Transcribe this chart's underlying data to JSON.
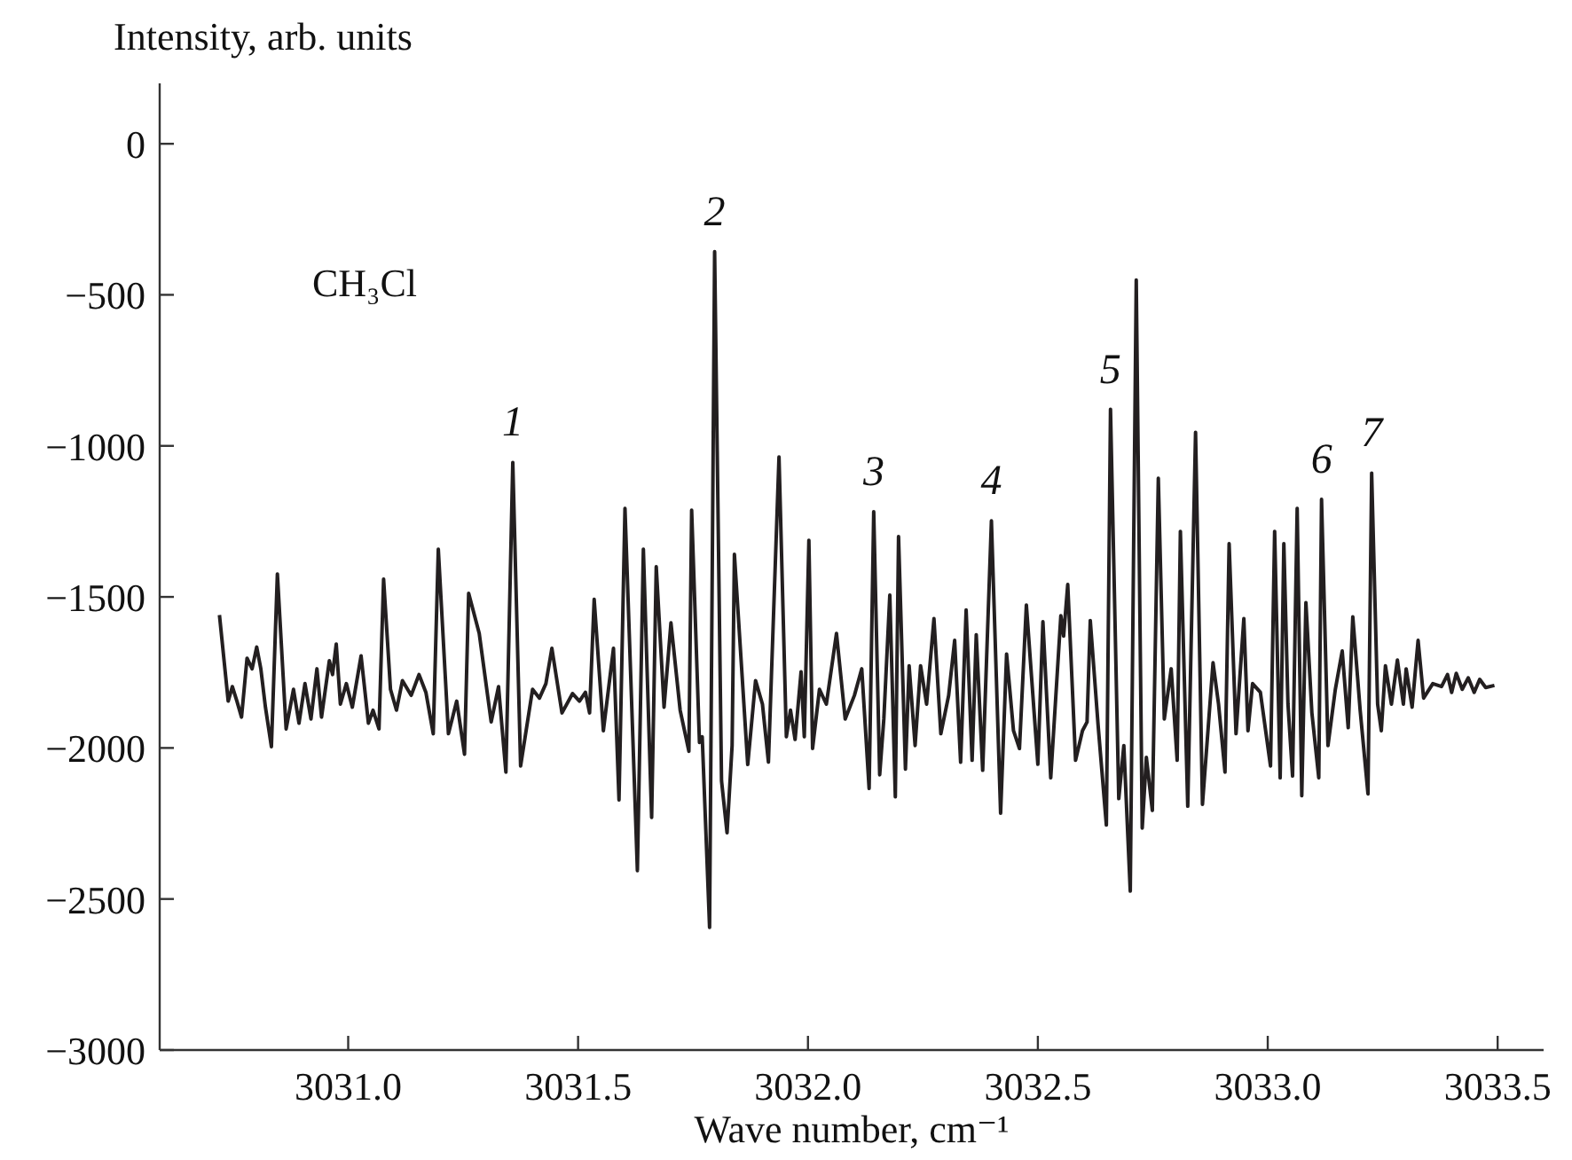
{
  "chart_data": {
    "type": "line",
    "xlabel": "Wave number, cm⁻¹",
    "ylabel": "Intensity, arb. units",
    "xlim": [
      3030.59,
      3033.6
    ],
    "ylim": [
      -3000,
      200
    ],
    "xticks": [
      {
        "value": 3031,
        "label": "3031.0"
      },
      {
        "value": 3031.5,
        "label": "3031.5"
      },
      {
        "value": 3032,
        "label": "3032.0"
      },
      {
        "value": 3032.5,
        "label": "3032.5"
      },
      {
        "value": 3033,
        "label": "3033.0"
      },
      {
        "value": 3033.5,
        "label": "3033.5"
      }
    ],
    "yticks": [
      {
        "value": -3000,
        "label": "−3000"
      },
      {
        "value": -2500,
        "label": "−2500"
      },
      {
        "value": -2000,
        "label": "−2000"
      },
      {
        "value": -1500,
        "label": "−1500"
      },
      {
        "value": -1000,
        "label": "−1000"
      },
      {
        "value": -500,
        "label": "−500"
      },
      0
    ],
    "marker": "none",
    "line_style": "solid",
    "series": [
      {
        "color": "#231f20",
        "x": [
          3030.72,
          3030.739,
          3030.748,
          3030.758,
          3030.768,
          3030.78,
          3030.791,
          3030.801,
          3030.81,
          3030.82,
          3030.833,
          3030.846,
          3030.865,
          3030.881,
          3030.893,
          3030.906,
          3030.919,
          3030.932,
          3030.942,
          3030.959,
          3030.966,
          3030.974,
          3030.983,
          3030.996,
          3031.009,
          3031.028,
          3031.044,
          3031.054,
          3031.067,
          3031.077,
          3031.092,
          3031.105,
          3031.118,
          3031.137,
          3031.154,
          3031.169,
          3031.185,
          3031.196,
          3031.218,
          3031.236,
          3031.253,
          3031.262,
          3031.285,
          3031.311,
          3031.327,
          3031.343,
          3031.358,
          3031.375,
          3031.401,
          3031.416,
          3031.43,
          3031.443,
          3031.465,
          3031.488,
          3031.503,
          3031.516,
          3031.525,
          3031.535,
          3031.555,
          3031.577,
          3031.589,
          3031.602,
          3031.629,
          3031.642,
          3031.66,
          3031.67,
          3031.687,
          3031.702,
          3031.722,
          3031.741,
          3031.747,
          3031.764,
          3031.77,
          3031.786,
          3031.797,
          3031.812,
          3031.824,
          3031.835,
          3031.84,
          3031.869,
          3031.886,
          3031.901,
          3031.914,
          3031.937,
          3031.953,
          3031.962,
          3031.972,
          3031.985,
          3031.992,
          3032.002,
          3032.01,
          3032.025,
          3032.04,
          3032.062,
          3032.081,
          3032.101,
          3032.117,
          3032.133,
          3032.143,
          3032.156,
          3032.165,
          3032.178,
          3032.19,
          3032.197,
          3032.212,
          3032.22,
          3032.233,
          3032.245,
          3032.258,
          3032.274,
          3032.289,
          3032.306,
          3032.319,
          3032.332,
          3032.344,
          3032.357,
          3032.366,
          3032.38,
          3032.399,
          3032.419,
          3032.432,
          3032.447,
          3032.46,
          3032.475,
          3032.5,
          3032.511,
          3032.528,
          3032.55,
          3032.556,
          3032.565,
          3032.582,
          3032.597,
          3032.607,
          3032.614,
          3032.631,
          3032.649,
          3032.658,
          3032.676,
          3032.687,
          3032.701,
          3032.714,
          3032.727,
          3032.736,
          3032.749,
          3032.762,
          3032.775,
          3032.79,
          3032.803,
          3032.81,
          3032.826,
          3032.843,
          3032.858,
          3032.881,
          3032.893,
          3032.907,
          3032.916,
          3032.931,
          3032.948,
          3032.957,
          3032.967,
          3032.984,
          3033.006,
          3033.015,
          3033.027,
          3033.035,
          3033.044,
          3033.054,
          3033.064,
          3033.074,
          3033.083,
          3033.096,
          3033.111,
          3033.117,
          3033.131,
          3033.147,
          3033.162,
          3033.175,
          3033.185,
          3033.201,
          3033.218,
          3033.226,
          3033.239,
          3033.247,
          3033.256,
          3033.269,
          3033.282,
          3033.295,
          3033.301,
          3033.314,
          3033.327,
          3033.339,
          3033.359,
          3033.378,
          3033.391,
          3033.4,
          3033.41,
          3033.423,
          3033.436,
          3033.449,
          3033.461,
          3033.474,
          3033.493
        ],
        "values": [
          -1560,
          -1845,
          -1797,
          -1845,
          -1898,
          -1703,
          -1738,
          -1666,
          -1738,
          -1865,
          -1996,
          -1424,
          -1937,
          -1806,
          -1918,
          -1787,
          -1904,
          -1738,
          -1898,
          -1711,
          -1757,
          -1656,
          -1855,
          -1787,
          -1865,
          -1695,
          -1918,
          -1875,
          -1937,
          -1441,
          -1806,
          -1875,
          -1777,
          -1826,
          -1757,
          -1816,
          -1953,
          -1342,
          -1953,
          -1845,
          -2021,
          -1488,
          -1621,
          -1914,
          -1797,
          -2080,
          -1055,
          -2060,
          -1806,
          -1835,
          -1787,
          -1670,
          -1884,
          -1820,
          -1845,
          -1816,
          -1884,
          -1508,
          -1943,
          -1670,
          -2172,
          -1207,
          -2406,
          -1342,
          -2230,
          -1400,
          -1865,
          -1586,
          -1875,
          -2011,
          -1213,
          -1982,
          -1963,
          -2594,
          -357,
          -2109,
          -2281,
          -1992,
          -1359,
          -2055,
          -1777,
          -1855,
          -2047,
          -1037,
          -1963,
          -1875,
          -1972,
          -1748,
          -1963,
          -1313,
          -2002,
          -1806,
          -1855,
          -1621,
          -1904,
          -1826,
          -1738,
          -2134,
          -1218,
          -2089,
          -1904,
          -1494,
          -2162,
          -1300,
          -2070,
          -1728,
          -1992,
          -1728,
          -1855,
          -1572,
          -1953,
          -1826,
          -1644,
          -2047,
          -1543,
          -2041,
          -1625,
          -2074,
          -1248,
          -2216,
          -1689,
          -1943,
          -2002,
          -1527,
          -2054,
          -1582,
          -2099,
          -1562,
          -1630,
          -1459,
          -2041,
          -1943,
          -1914,
          -1578,
          -1924,
          -2255,
          -879,
          -2168,
          -1992,
          -2474,
          -451,
          -2265,
          -2031,
          -2207,
          -1107,
          -1904,
          -1738,
          -2041,
          -1283,
          -2193,
          -955,
          -2187,
          -1718,
          -1855,
          -2080,
          -1324,
          -1953,
          -1572,
          -1943,
          -1787,
          -1816,
          -2060,
          -1283,
          -2099,
          -1324,
          -1855,
          -2093,
          -1207,
          -2158,
          -1519,
          -1884,
          -2099,
          -1177,
          -1992,
          -1806,
          -1679,
          -1933,
          -1566,
          -1875,
          -2152,
          -1090,
          -1855,
          -1943,
          -1728,
          -1855,
          -1709,
          -1855,
          -1738,
          -1865,
          -1644,
          -1835,
          -1787,
          -1797,
          -1757,
          -1816,
          -1753,
          -1806,
          -1768,
          -1816,
          -1773,
          -1800,
          -1793
        ]
      }
    ],
    "annotations": [
      "CH₃Cl",
      {
        "text": "1",
        "x": 3031.358,
        "y": -1055
      },
      {
        "text": "2",
        "x": 3031.797,
        "y": -357
      },
      {
        "text": "3",
        "x": 3032.143,
        "y": -1218
      },
      {
        "text": "4",
        "x": 3032.399,
        "y": -1248
      },
      {
        "text": "5",
        "x": 3032.658,
        "y": -879
      },
      {
        "text": "6",
        "x": 3033.117,
        "y": -1177
      },
      {
        "text": "7",
        "x": 3033.226,
        "y": -1090
      }
    ]
  }
}
